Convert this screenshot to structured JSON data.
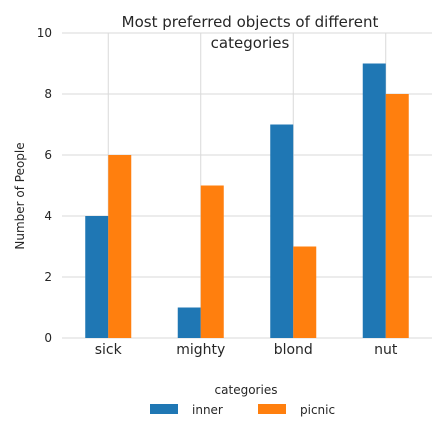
{
  "chart_data": {
    "type": "bar",
    "title": "Most preferred objects of different categories",
    "title_lines": [
      "Most preferred objects of different",
      "categories"
    ],
    "xlabel": "",
    "ylabel": "Number of People",
    "categories": [
      "sick",
      "mighty",
      "blond",
      "nut"
    ],
    "series": [
      {
        "name": "inner",
        "values": [
          4,
          1,
          7,
          9
        ],
        "color": "#1f77b4"
      },
      {
        "name": "picnic",
        "values": [
          6,
          5,
          3,
          8
        ],
        "color": "#ff7f0e"
      }
    ],
    "ylim": [
      0,
      10
    ],
    "yticks": [
      0,
      2,
      4,
      6,
      8,
      10
    ],
    "grid": true,
    "legend": {
      "title": "categories",
      "placement": "bottom-center"
    }
  }
}
